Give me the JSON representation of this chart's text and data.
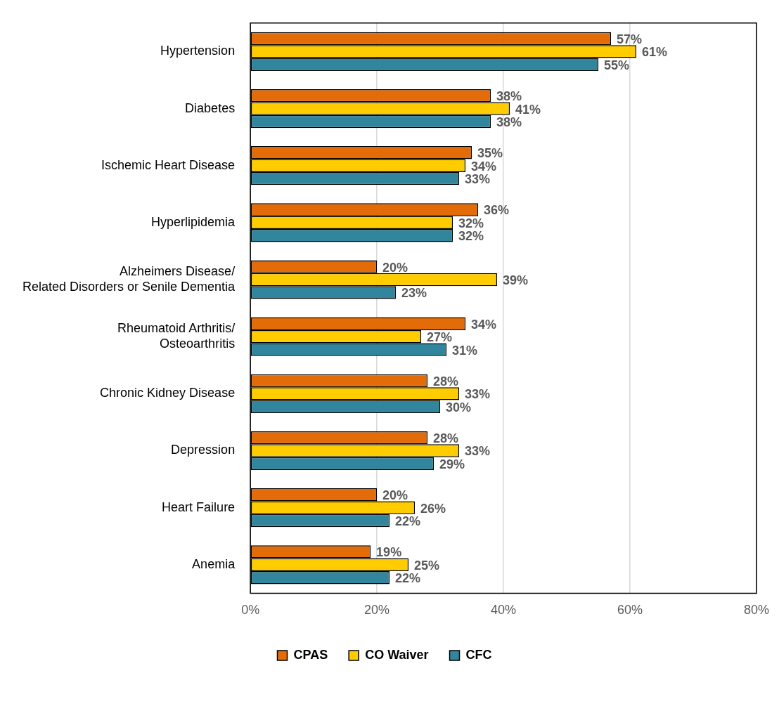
{
  "chart_data": {
    "type": "bar",
    "orientation": "horizontal",
    "categories": [
      "Hypertension",
      "Diabetes",
      "Ischemic Heart Disease",
      "Hyperlipidemia",
      "Alzheimers Disease/ Related Disorders or Senile Dementia",
      "Rheumatoid Arthritis/ Osteoarthritis",
      "Chronic Kidney Disease",
      "Depression",
      "Heart Failure",
      "Anemia"
    ],
    "series": [
      {
        "name": "CPAS",
        "color": "#e36c09",
        "values": [
          57,
          38,
          35,
          36,
          20,
          34,
          28,
          28,
          20,
          19
        ],
        "value_labels": [
          "57%",
          "38%",
          "35%",
          "36%",
          "20%",
          "34%",
          "28%",
          "28%",
          "20%",
          "19%"
        ]
      },
      {
        "name": "CO Waiver",
        "color": "#ffcc00",
        "values": [
          61,
          41,
          34,
          32,
          39,
          27,
          33,
          33,
          26,
          25
        ],
        "value_labels": [
          "61%",
          "41%",
          "34%",
          "32%",
          "39%",
          "27%",
          "33%",
          "33%",
          "26%",
          "25%"
        ]
      },
      {
        "name": "CFC",
        "color": "#31859c",
        "values": [
          55,
          38,
          33,
          32,
          23,
          31,
          30,
          29,
          22,
          22
        ],
        "value_labels": [
          "55%",
          "38%",
          "33%",
          "32%",
          "23%",
          "31%",
          "30%",
          "29%",
          "22%",
          "22%"
        ]
      }
    ],
    "xlim": [
      0,
      80
    ],
    "xticks": [
      {
        "value": 0,
        "label": "0%"
      },
      {
        "value": 20,
        "label": "20%"
      },
      {
        "value": 40,
        "label": "40%"
      },
      {
        "value": 60,
        "label": "60%"
      },
      {
        "value": 80,
        "label": "80%"
      }
    ],
    "grid": "x",
    "legend": "bottom"
  }
}
